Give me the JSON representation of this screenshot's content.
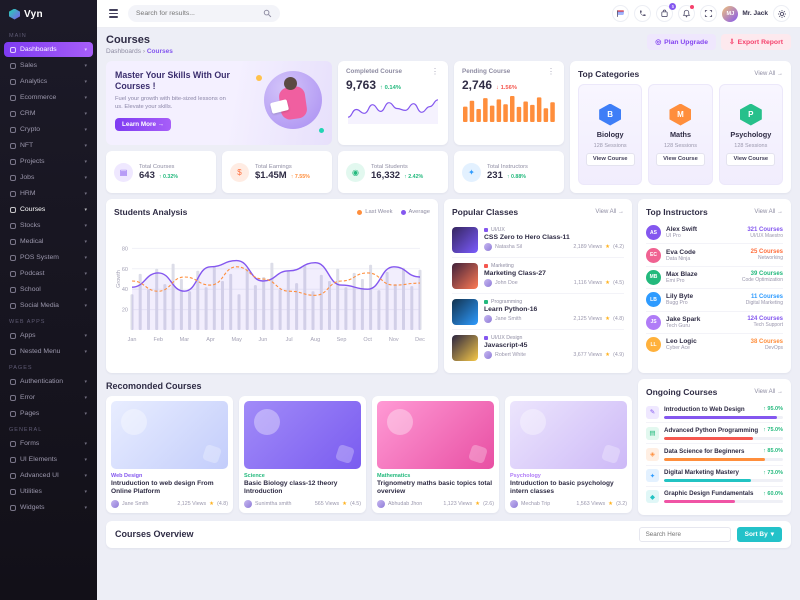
{
  "app": {
    "name": "Vyn"
  },
  "icons": {
    "caret_down": "▾",
    "arrow_right": "→",
    "up": "↑",
    "down": "↓",
    "more": "⋮",
    "star": "★",
    "sep": "›"
  },
  "header": {
    "search_placeholder": "Search for results...",
    "cart_badge": "5",
    "user_name": "Mr. Jack"
  },
  "page": {
    "title": "Courses",
    "breadcrumb": [
      "Dashboards",
      "Courses"
    ],
    "plan_upgrade": "Plan Upgrade",
    "export_report": "Export Report"
  },
  "sidebar": {
    "sections": [
      {
        "label": "MAIN",
        "items": [
          {
            "label": "Dashboards",
            "state": "active"
          },
          {
            "label": "Sales"
          },
          {
            "label": "Analytics"
          },
          {
            "label": "Ecommerce"
          },
          {
            "label": "CRM"
          },
          {
            "label": "Crypto"
          },
          {
            "label": "NFT"
          },
          {
            "label": "Projects"
          },
          {
            "label": "Jobs"
          },
          {
            "label": "HRM"
          },
          {
            "label": "Courses",
            "state": "current"
          },
          {
            "label": "Stocks"
          },
          {
            "label": "Medical"
          },
          {
            "label": "POS System"
          },
          {
            "label": "Podcast"
          },
          {
            "label": "School"
          },
          {
            "label": "Social Media"
          }
        ]
      },
      {
        "label": "WEB APPS",
        "items": [
          {
            "label": "Apps"
          },
          {
            "label": "Nested Menu"
          }
        ]
      },
      {
        "label": "PAGES",
        "items": [
          {
            "label": "Authentication"
          },
          {
            "label": "Error"
          },
          {
            "label": "Pages"
          }
        ]
      },
      {
        "label": "GENERAL",
        "items": [
          {
            "label": "Forms"
          },
          {
            "label": "UI Elements"
          },
          {
            "label": "Advanced UI"
          },
          {
            "label": "Utilities"
          },
          {
            "label": "Widgets"
          }
        ]
      }
    ]
  },
  "hero": {
    "title": "Master Your Skills With Our Courses !",
    "body": "Fuel your growth with bite-sized lessons on us. Elevate your skills.",
    "cta": "Learn More"
  },
  "completed_course": {
    "label": "Completed Course",
    "value": "9,763",
    "arrow": "↑",
    "delta": "0.14%",
    "color": "#23b97d"
  },
  "pending_course": {
    "label": "Pending Course",
    "value": "2,746",
    "arrow": "↓",
    "delta": "1.56%",
    "color": "#f5574f"
  },
  "top_categories": {
    "title": "Top Categories",
    "view_all": "View All",
    "items": [
      {
        "name": "Biology",
        "sessions": "128 Sessions",
        "button": "View Course",
        "color": "#3e7ef7",
        "icon": "biology-hexagon-icon"
      },
      {
        "name": "Maths",
        "sessions": "128 Sessions",
        "button": "View Course",
        "color": "#ff8e3c",
        "icon": "maths-hexagon-icon"
      },
      {
        "name": "Psychology",
        "sessions": "128 Sessions",
        "button": "View Course",
        "color": "#27c08b",
        "icon": "psychology-hexagon-icon"
      }
    ]
  },
  "stats": [
    {
      "label": "Total Courses",
      "value": "643",
      "arrow": "↑",
      "delta": "0.32%",
      "delta_color": "#23b97d",
      "color": "#8457ef",
      "tint": "#efe8ff",
      "glyph": "▤",
      "icon": "courses-icon"
    },
    {
      "label": "Total Earnings",
      "value": "$1.45M",
      "arrow": "↑",
      "delta": "7.55%",
      "delta_color": "#ff8e3c",
      "color": "#ff6e3c",
      "tint": "#ffece3",
      "glyph": "$",
      "icon": "dollar-icon"
    },
    {
      "label": "Total Students",
      "value": "16,332",
      "arrow": "↑",
      "delta": "2.42%",
      "delta_color": "#23b97d",
      "color": "#23b97d",
      "tint": "#e2f8ef",
      "glyph": "◉",
      "icon": "students-icon"
    },
    {
      "label": "Total Instructors",
      "value": "231",
      "arrow": "↑",
      "delta": "0.88%",
      "delta_color": "#23b97d",
      "color": "#2e9bff",
      "tint": "#e3f1ff",
      "glyph": "✦",
      "icon": "instructors-icon"
    }
  ],
  "students_analysis": {
    "title": "Students Analysis",
    "legend": [
      {
        "label": "Last Week",
        "color": "#ff8e3c"
      },
      {
        "label": "Average",
        "color": "#8457ef"
      }
    ]
  },
  "popular_classes": {
    "title": "Popular Classes",
    "view_all": "View All",
    "items": [
      {
        "category": "UI/UX",
        "category_color": "#8457ef",
        "title": "CSS Zero to Hero Class-11",
        "instructor": "Natasha Sil",
        "views": "2,189 Views",
        "rating": "(4.2)",
        "thumb": "linear-gradient(135deg,#35255e,#7b5cff)"
      },
      {
        "category": "Marketing",
        "category_color": "#f5574f",
        "title": "Marketing Class-27",
        "instructor": "John Doe",
        "views": "1,116 Views",
        "rating": "(4.5)",
        "thumb": "linear-gradient(135deg,#40213a,#ff7b54)"
      },
      {
        "category": "Programming",
        "category_color": "#23b97d",
        "title": "Learn Python-16",
        "instructor": "Jane Smith",
        "views": "2,125 Views",
        "rating": "(4.8)",
        "thumb": "linear-gradient(135deg,#12324d,#2e9bff)"
      },
      {
        "category": "UI/UX Design",
        "category_color": "#8457ef",
        "title": "Javascript-45",
        "instructor": "Robert White",
        "views": "3,677 Views",
        "rating": "(4.9)",
        "thumb": "linear-gradient(135deg,#2a2440,#f7c948)"
      }
    ]
  },
  "top_instructors": {
    "title": "Top Instructors",
    "view_all": "View All",
    "items": [
      {
        "name": "Alex Swift",
        "role": "UI Pro",
        "courses": "321 Courses",
        "courses_color": "#8457ef",
        "specialty": "UI/UX Maestro",
        "avatar_color": "#8457ef"
      },
      {
        "name": "Eva Code",
        "role": "Data Ninja",
        "courses": "25 Courses",
        "courses_color": "#ff6e3c",
        "specialty": "Networking",
        "avatar_color": "#f06292"
      },
      {
        "name": "Max Blaze",
        "role": "Emi Pro",
        "courses": "39 Courses",
        "courses_color": "#23b97d",
        "specialty": "Code Optimization",
        "avatar_color": "#23b97d"
      },
      {
        "name": "Lily Byte",
        "role": "Bugg Pro",
        "courses": "11 Courses",
        "courses_color": "#2e9bff",
        "specialty": "Digital Marketing",
        "avatar_color": "#2e9bff"
      },
      {
        "name": "Jake Spark",
        "role": "Tech Guru",
        "courses": "124 Courses",
        "courses_color": "#8457ef",
        "specialty": "Tech Support",
        "avatar_color": "#b07cf7"
      },
      {
        "name": "Leo Logic",
        "role": "Cyber Ace",
        "courses": "38 Courses",
        "courses_color": "#ff8e3c",
        "specialty": "DevOps",
        "avatar_color": "#ffb13c"
      }
    ]
  },
  "recommended": {
    "title": "Recomonded Courses",
    "items": [
      {
        "category": "Web Design",
        "category_color": "#8457ef",
        "title": "Intruduction to web design From Online Platform",
        "instructor": "Jane Smith",
        "views": "2,125 Views",
        "rating": "(4.8)",
        "image_bg": "linear-gradient(135deg,#e8edff,#c3cdfb)"
      },
      {
        "category": "Science",
        "category_color": "#23b97d",
        "title": "Basic Biology class-12 theory Introduction",
        "instructor": "Sunimtha smith",
        "views": "565 Views",
        "rating": "(4.5)",
        "image_bg": "linear-gradient(135deg,#a18bf8,#7a5cf0)"
      },
      {
        "category": "Mathematics",
        "category_color": "#23b97d",
        "title": "Trignometry maths basic topics total overview",
        "instructor": "Abhudab Jhon",
        "views": "1,123 Views",
        "rating": "(2.6)",
        "image_bg": "linear-gradient(135deg,#ff9ad5,#e84fa3)"
      },
      {
        "category": "Psychology",
        "category_color": "#b07cf7",
        "title": "Intruduction to basic psychology intern classes",
        "instructor": "Mechab Trip",
        "views": "1,563 Views",
        "rating": "(3.2)",
        "image_bg": "linear-gradient(135deg,#ece5fd,#cdb9f7)"
      }
    ]
  },
  "ongoing": {
    "title": "Ongoing Courses",
    "view_all": "View All",
    "items": [
      {
        "name": "Introduction to Web Design",
        "percent_label": "95.0%",
        "bar_color": "#8457ef",
        "icon_color": "#8457ef",
        "icon_tint": "#efe8ff",
        "glyph": "✎"
      },
      {
        "name": "Advanced Python Programming",
        "percent_label": "75.0%",
        "bar_color": "#f5574f",
        "icon_color": "#23b97d",
        "icon_tint": "#e2f8ef",
        "glyph": "▤"
      },
      {
        "name": "Data Science for Beginners",
        "percent_label": "85.0%",
        "bar_color": "#ff8e3c",
        "icon_color": "#ff8e3c",
        "icon_tint": "#ffefe3",
        "glyph": "◈"
      },
      {
        "name": "Digital Marketing Mastery",
        "percent_label": "73.0%",
        "bar_color": "#22c3c3",
        "icon_color": "#2e9bff",
        "icon_tint": "#e3f1ff",
        "glyph": "✦"
      },
      {
        "name": "Graphic Design Fundamentals",
        "percent_label": "60.0%",
        "bar_color": "#f054a5",
        "icon_color": "#22c3c3",
        "icon_tint": "#e0f7f7",
        "glyph": "◆"
      }
    ]
  },
  "courses_overview": {
    "title": "Courses Overview",
    "search_placeholder": "Search Here",
    "sort_label": "Sort By"
  },
  "chart_data": [
    {
      "id": "completed_spark",
      "type": "line",
      "title": "Completed Course",
      "color": "#8457ef",
      "series": [
        {
          "name": "Completed Course",
          "values": [
            32,
            48,
            40,
            58,
            44,
            62,
            50,
            46,
            60,
            42,
            54,
            68
          ]
        }
      ]
    },
    {
      "id": "pending_spark",
      "type": "bar",
      "title": "Pending Course",
      "color": "#ff8e3c",
      "values": [
        45,
        62,
        38,
        70,
        48,
        66,
        52,
        76,
        44,
        60,
        50,
        72,
        40,
        58
      ]
    },
    {
      "id": "students_analysis",
      "type": "line+bar",
      "title": "Students Analysis",
      "categories": [
        "Jan",
        "Feb",
        "Mar",
        "Apr",
        "May",
        "Jun",
        "Jul",
        "Aug",
        "Sep",
        "Oct",
        "Nov",
        "Dec"
      ],
      "series": [
        {
          "name": "Last Week",
          "style": "dashed",
          "color": "#ff8e3c",
          "values": [
            48,
            38,
            52,
            44,
            62,
            50,
            38,
            34,
            48,
            56,
            44,
            46
          ]
        },
        {
          "name": "Average",
          "style": "solid",
          "color": "#8457ef",
          "values": [
            42,
            56,
            38,
            62,
            68,
            48,
            58,
            66,
            44,
            40,
            62,
            52
          ]
        }
      ],
      "bars": {
        "color": "#dcdde8",
        "values": [
          35,
          55,
          40,
          60,
          45,
          65,
          50,
          38,
          58,
          42,
          62,
          48,
          55,
          35,
          60,
          44,
          52,
          66,
          40,
          58,
          46,
          63,
          38,
          54,
          48,
          60,
          42,
          56,
          50,
          64,
          39,
          57,
          45,
          61,
          43,
          59
        ]
      },
      "ylabel": "Growth",
      "yticks": [
        20,
        40,
        60,
        80
      ],
      "ylim": [
        0,
        100
      ],
      "grid": true,
      "legend_position": "top-right"
    }
  ]
}
